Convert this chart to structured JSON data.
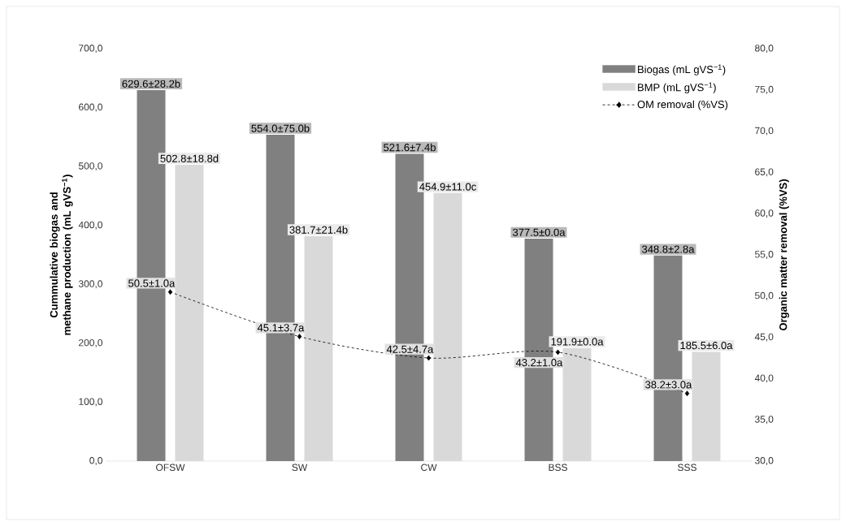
{
  "chart_data": {
    "type": "bar",
    "categories": [
      "OFSW",
      "SW",
      "CW",
      "BSS",
      "SSS"
    ],
    "series": [
      {
        "name": "Biogas (mL gVS$^{−1}$)",
        "color": "#808080",
        "values": [
          629.6,
          554.0,
          521.6,
          377.5,
          348.8
        ],
        "value_labels": [
          "629.6±28.2b",
          "554.0±75.0b",
          "521.6±7.4b",
          "377.5±0.0a",
          "348.8±2.8a"
        ]
      },
      {
        "name": "BMP (mL gVS$^{−1}$)",
        "color": "#d9d9d9",
        "values": [
          502.8,
          381.7,
          454.9,
          191.9,
          185.5
        ],
        "value_labels": [
          "502.8±18.8d",
          "381.7±21.4b",
          "454.9±11.0c",
          "191.9±0.0a",
          "185.5±6.0a"
        ]
      },
      {
        "name": "OM removal (%VS)",
        "type": "line",
        "axis": "y2",
        "color": "#000000",
        "marker": "diamond",
        "line_style": "dashed",
        "values": [
          50.5,
          45.1,
          42.5,
          43.2,
          38.2
        ],
        "value_labels": [
          "50.5±1.0a",
          "45.1±3.7a",
          "42.5±4.7a",
          "43.2±1.0a",
          "38.2±3.0a"
        ]
      }
    ],
    "ylabel": "Cummulative biogas and methane production (mL gVS$^{−1}$)",
    "y2label": "Organic matter removal (%VS)",
    "ylim": [
      0,
      700
    ],
    "yticks": [
      {
        "value": 0,
        "label": "0,0"
      },
      {
        "value": 100,
        "label": "100,0"
      },
      {
        "value": 200,
        "label": "200,0"
      },
      {
        "value": 300,
        "label": "300,0"
      },
      {
        "value": 400,
        "label": "400,0"
      },
      {
        "value": 500,
        "label": "500,0"
      },
      {
        "value": 600,
        "label": "600,0"
      },
      {
        "value": 700,
        "label": "700,0"
      }
    ],
    "y2lim": [
      30,
      80
    ],
    "y2ticks": [
      {
        "value": 30,
        "label": "30,0"
      },
      {
        "value": 35,
        "label": "35,0"
      },
      {
        "value": 40,
        "label": "40,0"
      },
      {
        "value": 45,
        "label": "45,0"
      },
      {
        "value": 50,
        "label": "50,0"
      },
      {
        "value": 55,
        "label": "55,0"
      },
      {
        "value": 60,
        "label": "60,0"
      },
      {
        "value": 65,
        "label": "65,0"
      },
      {
        "value": 70,
        "label": "70,0"
      },
      {
        "value": 75,
        "label": "75,0"
      },
      {
        "value": 80,
        "label": "80,0"
      }
    ],
    "legend": "top right"
  }
}
